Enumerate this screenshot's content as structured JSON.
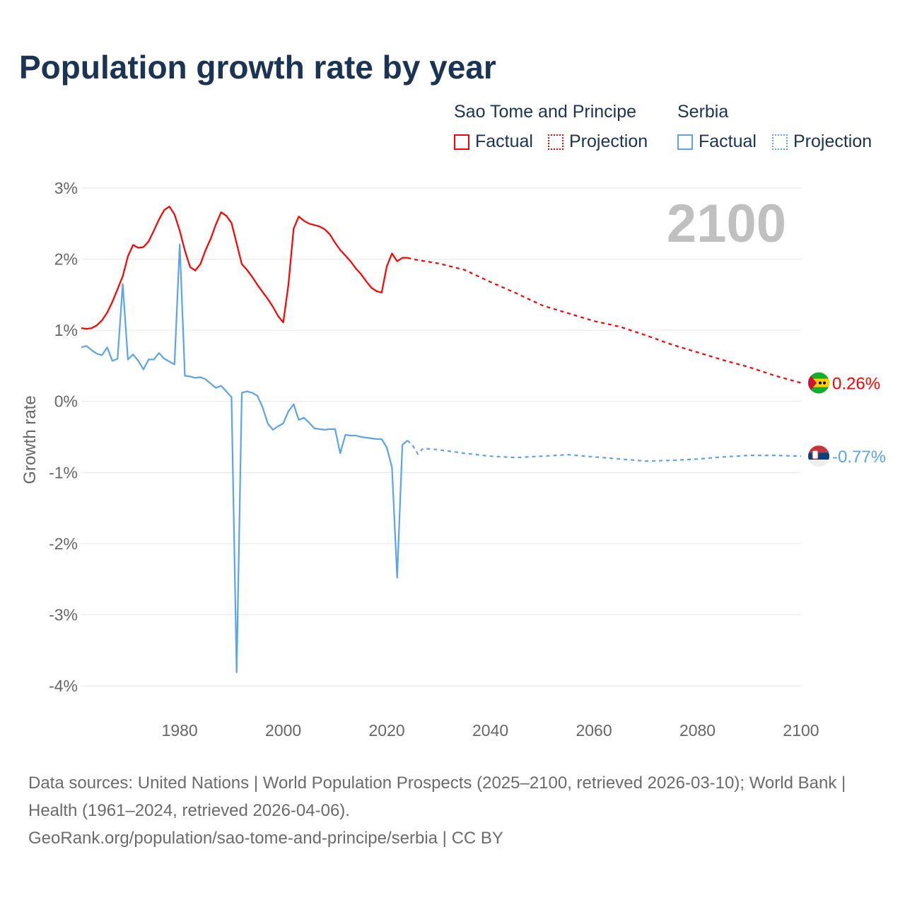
{
  "title": "Population growth rate by year",
  "legend": {
    "groups": [
      {
        "name": "Sao Tome and Principe",
        "color": "#ff0000",
        "factual": "Factual",
        "projection": "Projection"
      },
      {
        "name": "Serbia",
        "color": "#5ba3ea",
        "factual": "Factual",
        "projection": "Projection"
      }
    ]
  },
  "footer": {
    "sources": "Data sources: United Nations | World Population Prospects (2025–2100, retrieved 2026-03-10); World Bank | Health (1961–2024, retrieved 2026-04-06).",
    "credit": "GeoRank.org/population/sao-tome-and-principe/serbia | CC BY"
  },
  "chart_data": {
    "type": "line",
    "title": "Population growth rate by year",
    "xlabel": "",
    "ylabel": "Growth rate",
    "xlim": [
      1961,
      2100
    ],
    "ylim": [
      -4,
      3
    ],
    "x_ticks": [
      1980,
      2000,
      2020,
      2040,
      2060,
      2080,
      2100
    ],
    "y_ticks": [
      {
        "v": 3,
        "label": "3%"
      },
      {
        "v": 2,
        "label": "2%"
      },
      {
        "v": 1,
        "label": "1%"
      },
      {
        "v": 0,
        "label": "0%"
      },
      {
        "v": -1,
        "label": "-1%"
      },
      {
        "v": -2,
        "label": "-2%"
      },
      {
        "v": -3,
        "label": "-3%"
      },
      {
        "v": -4,
        "label": "-4%"
      }
    ],
    "grid": true,
    "year_indicator": "2100",
    "series": [
      {
        "name": "Sao Tome and Principe",
        "color": "#ff0000",
        "end_label": "0.26%",
        "factual": {
          "x": [
            1961,
            1962,
            1963,
            1964,
            1965,
            1966,
            1967,
            1968,
            1969,
            1970,
            1971,
            1972,
            1973,
            1974,
            1975,
            1976,
            1977,
            1978,
            1979,
            1980,
            1981,
            1982,
            1983,
            1984,
            1985,
            1986,
            1987,
            1988,
            1989,
            1990,
            1991,
            1992,
            1993,
            1994,
            1995,
            1996,
            1997,
            1998,
            1999,
            2000,
            2001,
            2002,
            2003,
            2004,
            2005,
            2006,
            2007,
            2008,
            2009,
            2010,
            2011,
            2012,
            2013,
            2014,
            2015,
            2016,
            2017,
            2018,
            2019,
            2020,
            2021,
            2022,
            2023,
            2024
          ],
          "y": [
            1.03,
            1.02,
            1.03,
            1.07,
            1.14,
            1.25,
            1.4,
            1.58,
            1.76,
            2.04,
            2.2,
            2.16,
            2.17,
            2.25,
            2.4,
            2.56,
            2.69,
            2.74,
            2.63,
            2.4,
            2.12,
            1.89,
            1.84,
            1.93,
            2.13,
            2.29,
            2.49,
            2.66,
            2.61,
            2.51,
            2.22,
            1.93,
            1.85,
            1.75,
            1.64,
            1.54,
            1.44,
            1.33,
            1.2,
            1.11,
            1.64,
            2.43,
            2.6,
            2.54,
            2.5,
            2.48,
            2.46,
            2.42,
            2.35,
            2.23,
            2.13,
            2.05,
            1.97,
            1.87,
            1.79,
            1.69,
            1.6,
            1.55,
            1.53,
            1.9,
            2.08,
            1.97,
            2.02,
            2.02
          ]
        },
        "projection": {
          "x": [
            2024,
            2025,
            2030,
            2035,
            2040,
            2045,
            2050,
            2055,
            2060,
            2065,
            2070,
            2075,
            2080,
            2085,
            2090,
            2095,
            2100
          ],
          "y": [
            2.02,
            2.0,
            1.94,
            1.85,
            1.68,
            1.52,
            1.35,
            1.24,
            1.13,
            1.05,
            0.93,
            0.8,
            0.69,
            0.58,
            0.48,
            0.36,
            0.26
          ]
        }
      },
      {
        "name": "Serbia",
        "color": "#5ba3ea",
        "end_label": "-0.77%",
        "factual": {
          "x": [
            1961,
            1962,
            1963,
            1964,
            1965,
            1966,
            1967,
            1968,
            1969,
            1970,
            1971,
            1972,
            1973,
            1974,
            1975,
            1976,
            1977,
            1978,
            1979,
            1980,
            1981,
            1982,
            1983,
            1984,
            1985,
            1986,
            1987,
            1988,
            1989,
            1990,
            1991,
            1992,
            1993,
            1994,
            1995,
            1996,
            1997,
            1998,
            1999,
            2000,
            2001,
            2002,
            2003,
            2004,
            2005,
            2006,
            2007,
            2008,
            2009,
            2010,
            2011,
            2012,
            2013,
            2014,
            2015,
            2016,
            2017,
            2018,
            2019,
            2020,
            2021,
            2022,
            2023,
            2024
          ],
          "y": [
            0.76,
            0.78,
            0.72,
            0.67,
            0.65,
            0.76,
            0.57,
            0.6,
            1.65,
            0.59,
            0.66,
            0.57,
            0.45,
            0.59,
            0.59,
            0.68,
            0.6,
            0.56,
            0.52,
            2.21,
            0.36,
            0.35,
            0.33,
            0.34,
            0.31,
            0.25,
            0.19,
            0.22,
            0.14,
            0.06,
            -3.81,
            0.12,
            0.14,
            0.12,
            0.08,
            -0.08,
            -0.31,
            -0.4,
            -0.35,
            -0.31,
            -0.14,
            -0.04,
            -0.26,
            -0.23,
            -0.3,
            -0.38,
            -0.39,
            -0.4,
            -0.39,
            -0.39,
            -0.73,
            -0.47,
            -0.48,
            -0.48,
            -0.5,
            -0.51,
            -0.52,
            -0.53,
            -0.53,
            -0.65,
            -0.93,
            -2.48,
            -0.61,
            -0.55
          ]
        },
        "projection": {
          "x": [
            2024,
            2025,
            2026,
            2027,
            2030,
            2035,
            2040,
            2045,
            2050,
            2055,
            2060,
            2065,
            2070,
            2075,
            2080,
            2085,
            2090,
            2095,
            2100
          ],
          "y": [
            -0.55,
            -0.62,
            -0.74,
            -0.66,
            -0.68,
            -0.73,
            -0.77,
            -0.79,
            -0.77,
            -0.75,
            -0.78,
            -0.81,
            -0.84,
            -0.83,
            -0.81,
            -0.78,
            -0.76,
            -0.76,
            -0.77
          ]
        }
      }
    ]
  }
}
